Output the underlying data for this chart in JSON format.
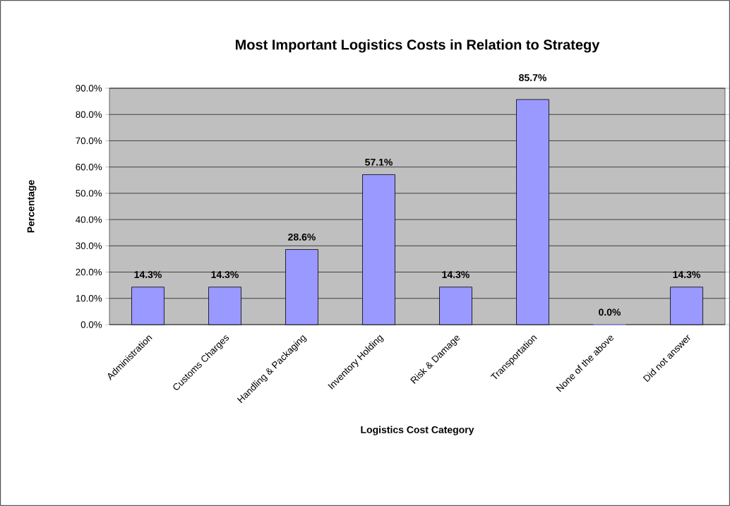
{
  "chart_data": {
    "type": "bar",
    "title": "Most Important Logistics Costs in Relation to Strategy",
    "xlabel": "Logistics Cost Category",
    "ylabel": "Percentage",
    "categories": [
      "Administration",
      "Customs Charges",
      "Handling & Packaging",
      "Inventory Holding",
      "Risk & Damage",
      "Transportation",
      "None of the above",
      "Did not answer"
    ],
    "values": [
      14.3,
      14.3,
      28.6,
      57.1,
      14.3,
      85.7,
      0.0,
      14.3
    ],
    "value_labels": [
      "14.3%",
      "14.3%",
      "28.6%",
      "57.1%",
      "14.3%",
      "85.7%",
      "0.0%",
      "14.3%"
    ],
    "color": "#9999ff",
    "ylim": [
      0,
      90
    ],
    "yticks": [
      {
        "value": 0,
        "label": "0.0%"
      },
      {
        "value": 10,
        "label": "10.0%"
      },
      {
        "value": 20,
        "label": "20.0%"
      },
      {
        "value": 30,
        "label": "30.0%"
      },
      {
        "value": 40,
        "label": "40.0%"
      },
      {
        "value": 50,
        "label": "50.0%"
      },
      {
        "value": 60,
        "label": "60.0%"
      },
      {
        "value": 70,
        "label": "70.0%"
      },
      {
        "value": 80,
        "label": "80.0%"
      },
      {
        "value": 90,
        "label": "90.0%"
      }
    ],
    "grid": "y"
  }
}
